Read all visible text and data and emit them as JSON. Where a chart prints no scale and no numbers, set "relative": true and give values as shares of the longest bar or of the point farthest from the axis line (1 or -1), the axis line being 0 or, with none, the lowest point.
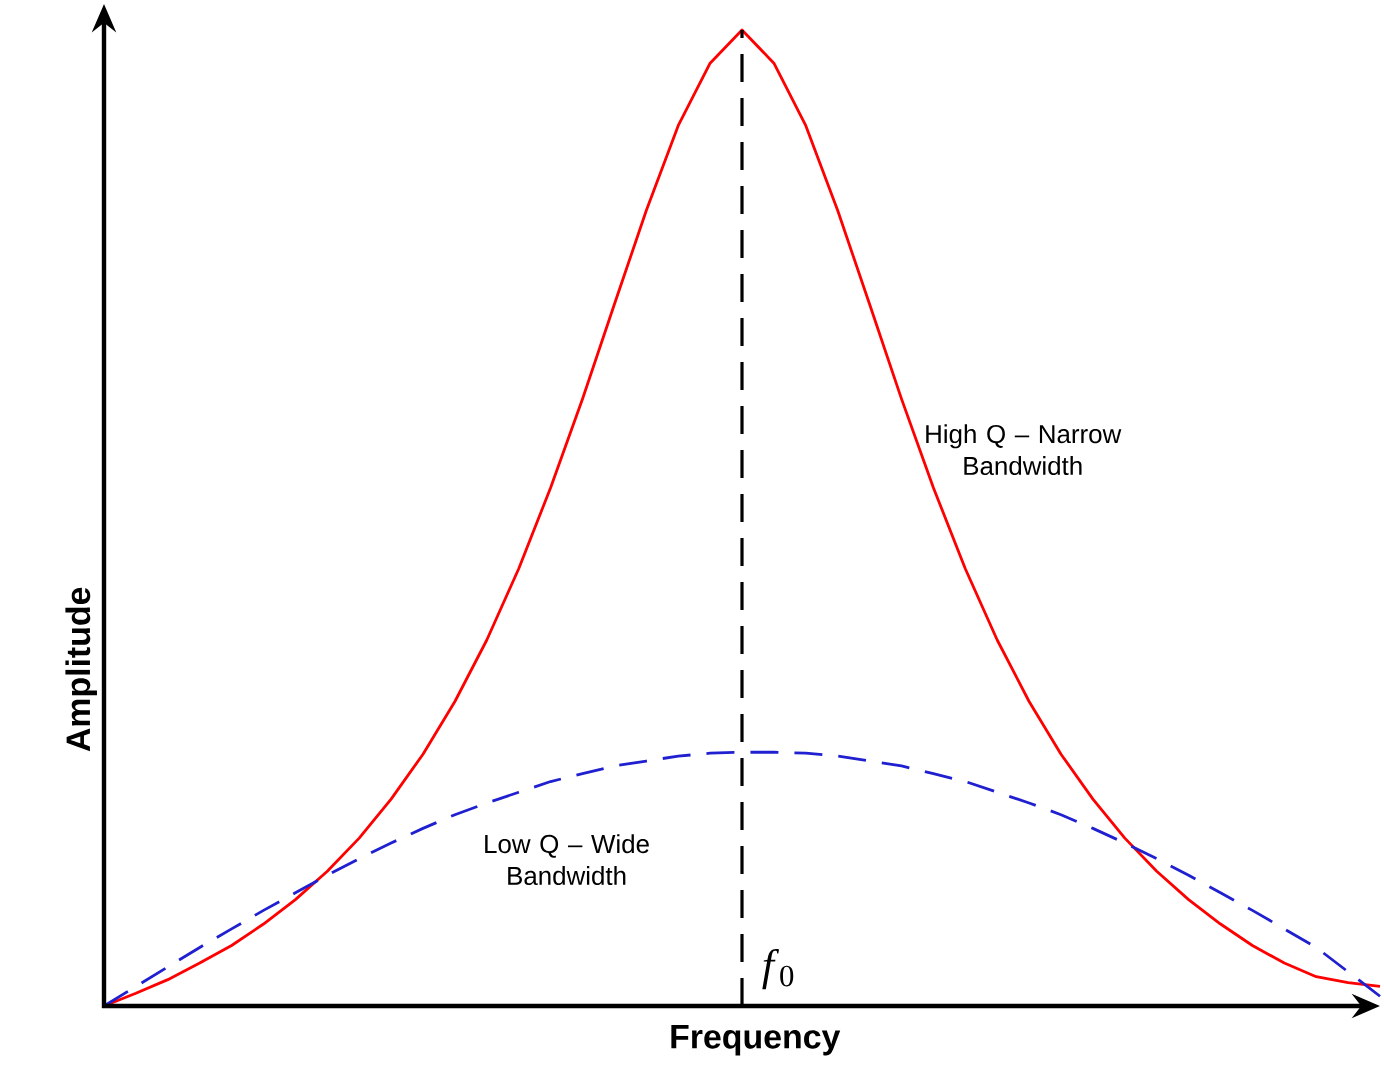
{
  "chart_data": {
    "type": "line",
    "relative": true,
    "xlabel": "Frequency",
    "ylabel": "Amplitude",
    "categories": [
      null,
      null,
      null,
      null,
      null,
      null,
      null,
      null,
      null,
      null,
      null,
      null,
      null,
      null,
      null,
      null,
      null,
      null,
      null,
      null,
      null,
      null,
      null,
      null,
      null,
      null,
      null,
      null,
      null,
      null,
      null,
      null,
      null,
      null,
      null,
      null,
      null,
      null,
      null,
      null,
      null
    ],
    "series": [
      {
        "color": "#ff0000",
        "line_style": "solid",
        "values": [
          0,
          0.013,
          0.027,
          0.044,
          0.062,
          0.084,
          0.109,
          0.138,
          0.172,
          0.212,
          0.258,
          0.312,
          0.375,
          0.448,
          0.531,
          0.622,
          0.719,
          0.815,
          0.902,
          0.966,
          1,
          0.966,
          0.902,
          0.815,
          0.719,
          0.622,
          0.531,
          0.448,
          0.375,
          0.312,
          0.258,
          0.212,
          0.172,
          0.138,
          0.109,
          0.084,
          0.062,
          0.044,
          0.03,
          0.024,
          0.02
        ]
      },
      {
        "color": "#2020d0",
        "line_style": "dashed",
        "values": [
          0,
          0.02,
          0.04,
          0.06,
          0.079,
          0.098,
          0.116,
          0.134,
          0.151,
          0.167,
          0.182,
          0.196,
          0.208,
          0.219,
          0.23,
          0.238,
          0.246,
          0.251,
          0.256,
          0.259,
          0.26,
          0.26,
          0.259,
          0.256,
          0.251,
          0.246,
          0.238,
          0.23,
          0.219,
          0.208,
          0.196,
          0.182,
          0.167,
          0.151,
          0.134,
          0.116,
          0.098,
          0.079,
          0.06,
          0.035,
          0.01
        ]
      }
    ],
    "annotations": [
      "High Q – Narrow Bandwidth",
      "Low Q – Wide Bandwidth",
      "*f*$_{0}$"
    ]
  }
}
